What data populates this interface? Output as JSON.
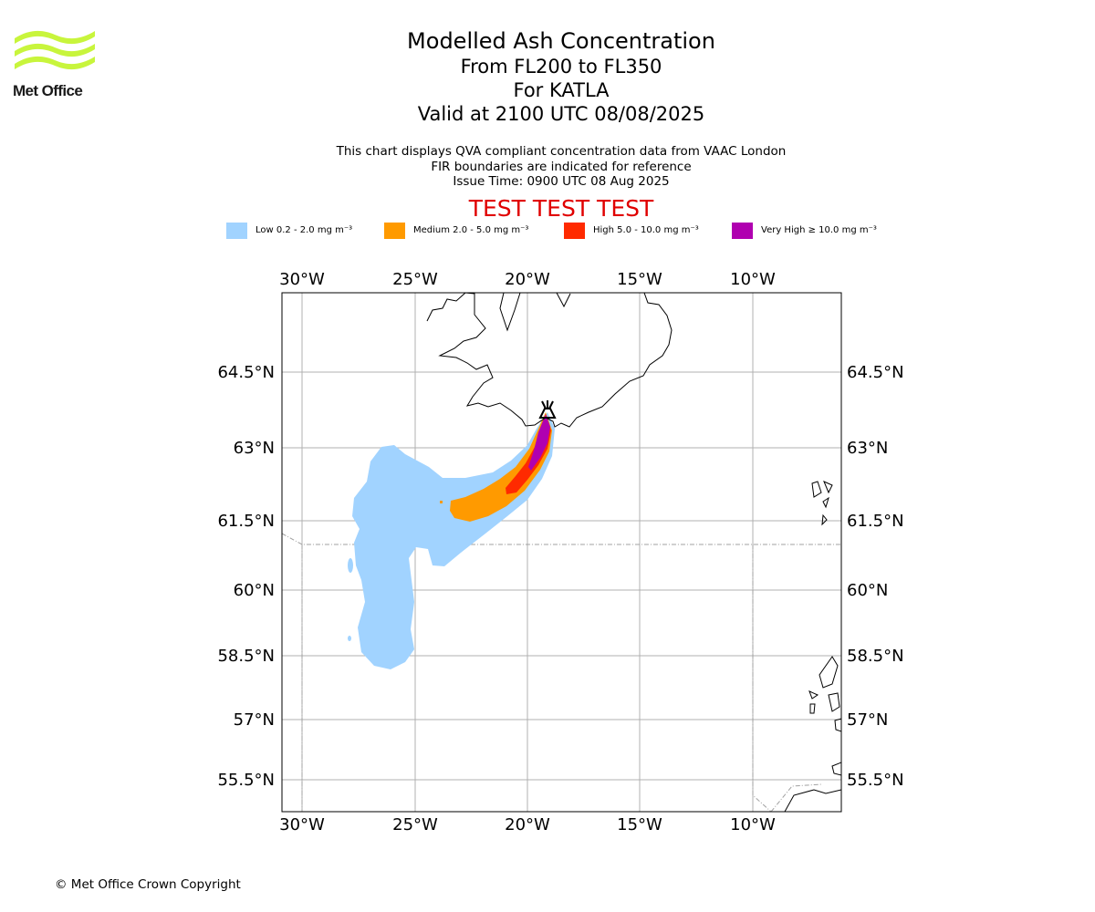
{
  "branding": {
    "logo_name": "Met Office",
    "logo_color": "#c8f53c"
  },
  "header": {
    "title": "Modelled Ash Concentration",
    "levels": "From FL200 to FL350",
    "volcano": "For KATLA",
    "valid_time": "Valid at 2100 UTC 08/08/2025",
    "note_1": "This chart displays QVA compliant concentration data from VAAC London",
    "note_2": "FIR boundaries are indicated for reference",
    "issue_time": "Issue Time: 0900 UTC 08 Aug 2025",
    "test_banner": "TEST TEST TEST"
  },
  "legend": [
    {
      "label": "Low 0.2 - 2.0 mg m⁻³",
      "color": "#a1d3ff"
    },
    {
      "label": "Medium 2.0 - 5.0 mg m⁻³",
      "color": "#ff9a00"
    },
    {
      "label": "High 5.0 - 10.0 mg m⁻³",
      "color": "#ff2a00"
    },
    {
      "label": "Very High ≥ 10.0 mg m⁻³",
      "color": "#b000b0"
    }
  ],
  "map": {
    "lon_labels": [
      "30°W",
      "25°W",
      "20°W",
      "15°W",
      "10°W"
    ],
    "lat_labels": [
      "64.5°N",
      "63°N",
      "61.5°N",
      "60°N",
      "58.5°N",
      "57°N",
      "55.5°N"
    ],
    "volcano_icon": "volcano-icon",
    "colors": {
      "land_outline": "#000000",
      "gridline": "#b0b0b0",
      "fir_boundary": "#a0a0a0"
    }
  },
  "footer": {
    "copyright": "© Met Office Crown Copyright"
  }
}
